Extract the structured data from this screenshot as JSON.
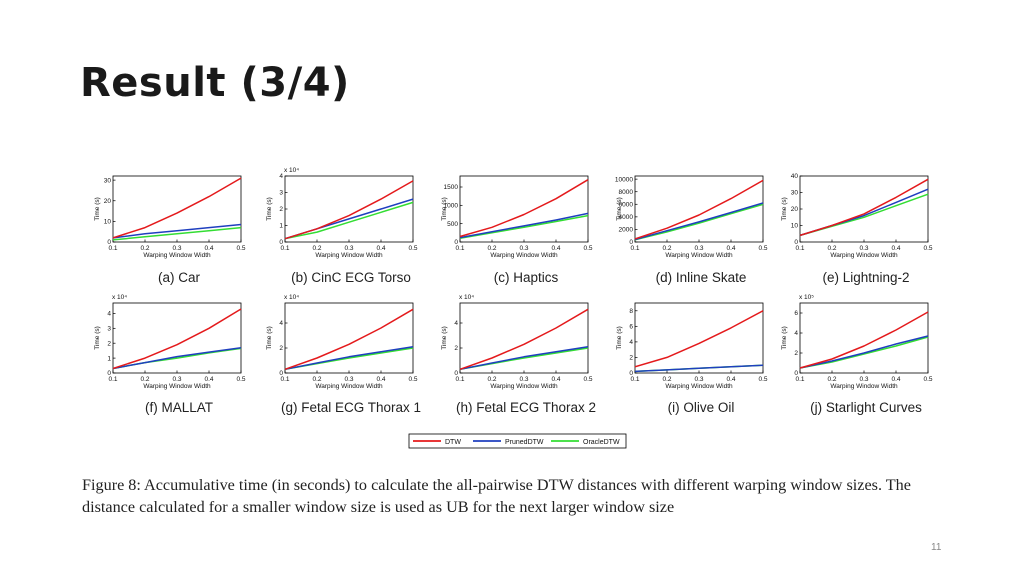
{
  "slide": {
    "title": "Result (3/4)",
    "page_number": "11"
  },
  "caption": "Figure 8: Accumulative time (in seconds) to calculate the all-pairwise DTW distances with different warping window sizes. The distance calculated for a smaller window size is used as UB for the next larger window size",
  "legend": [
    "DTW",
    "PrunedDTW",
    "OracleDTW"
  ],
  "colors": {
    "DTW": "#e41a1c",
    "PrunedDTW": "#1f3fbf",
    "OracleDTW": "#33dd33"
  },
  "chart_data": [
    {
      "type": "line",
      "caption": "(a) Car",
      "xlabel": "Warping Window Width",
      "ylabel": "Time (s)",
      "exponent": "",
      "x": [
        0.1,
        0.2,
        0.3,
        0.4,
        0.5
      ],
      "xticks": [
        "0.1",
        "0.2",
        "0.3",
        "0.4",
        "0.5"
      ],
      "ylim": [
        0,
        32
      ],
      "yticks": [
        0,
        10,
        20,
        30
      ],
      "ytick_labels": [
        "0",
        "10",
        "20",
        "30"
      ],
      "series": [
        {
          "name": "DTW",
          "values": [
            2,
            7,
            14,
            22,
            31
          ]
        },
        {
          "name": "PrunedDTW",
          "values": [
            2,
            4,
            5.5,
            7,
            8.5
          ]
        },
        {
          "name": "OracleDTW",
          "values": [
            1,
            2.5,
            4,
            5.5,
            7
          ]
        }
      ]
    },
    {
      "type": "line",
      "caption": "(b) CinC ECG Torso",
      "xlabel": "Warping Window Width",
      "ylabel": "Time (s)",
      "exponent": "x 10⁴",
      "x": [
        0.1,
        0.2,
        0.3,
        0.4,
        0.5
      ],
      "xticks": [
        "0.1",
        "0.2",
        "0.3",
        "0.4",
        "0.5"
      ],
      "ylim": [
        0,
        4
      ],
      "yticks": [
        0,
        1,
        2,
        3,
        4
      ],
      "ytick_labels": [
        "0",
        "1",
        "2",
        "3",
        "4"
      ],
      "series": [
        {
          "name": "DTW",
          "values": [
            0.2,
            0.8,
            1.6,
            2.6,
            3.7
          ]
        },
        {
          "name": "PrunedDTW",
          "values": [
            0.2,
            0.8,
            1.4,
            2.0,
            2.6
          ]
        },
        {
          "name": "OracleDTW",
          "values": [
            0.2,
            0.6,
            1.2,
            1.8,
            2.4
          ]
        }
      ]
    },
    {
      "type": "line",
      "caption": "(c) Haptics",
      "xlabel": "Warping Window Width",
      "ylabel": "Time (s)",
      "exponent": "",
      "x": [
        0.1,
        0.2,
        0.3,
        0.4,
        0.5
      ],
      "xticks": [
        "0.1",
        "0.2",
        "0.3",
        "0.4",
        "0.5"
      ],
      "ylim": [
        0,
        1800
      ],
      "yticks": [
        0,
        500,
        1000,
        1500
      ],
      "ytick_labels": [
        "0",
        "500",
        "1000",
        "1500"
      ],
      "series": [
        {
          "name": "DTW",
          "values": [
            150,
            400,
            750,
            1180,
            1700
          ]
        },
        {
          "name": "PrunedDTW",
          "values": [
            120,
            280,
            440,
            600,
            780
          ]
        },
        {
          "name": "OracleDTW",
          "values": [
            100,
            250,
            400,
            560,
            720
          ]
        }
      ]
    },
    {
      "type": "line",
      "caption": "(d) Inline Skate",
      "xlabel": "Warping Window Width",
      "ylabel": "Time (s)",
      "exponent": "",
      "x": [
        0.1,
        0.2,
        0.3,
        0.4,
        0.5
      ],
      "xticks": [
        "0.1",
        "0.2",
        "0.3",
        "0.4",
        "0.5"
      ],
      "ylim": [
        0,
        10500
      ],
      "yticks": [
        0,
        2000,
        4000,
        6000,
        8000,
        10000
      ],
      "ytick_labels": [
        "0",
        "2000",
        "4000",
        "6000",
        "8000",
        "10000"
      ],
      "series": [
        {
          "name": "DTW",
          "values": [
            500,
            2200,
            4300,
            6900,
            9800
          ]
        },
        {
          "name": "PrunedDTW",
          "values": [
            400,
            1800,
            3200,
            4700,
            6200
          ]
        },
        {
          "name": "OracleDTW",
          "values": [
            350,
            1600,
            3000,
            4500,
            6000
          ]
        }
      ]
    },
    {
      "type": "line",
      "caption": "(e) Lightning-2",
      "xlabel": "Warping Window Width",
      "ylabel": "Time (s)",
      "exponent": "",
      "x": [
        0.1,
        0.2,
        0.3,
        0.4,
        0.5
      ],
      "xticks": [
        "0.1",
        "0.2",
        "0.3",
        "0.4",
        "0.5"
      ],
      "ylim": [
        0,
        40
      ],
      "yticks": [
        0,
        10,
        20,
        30,
        40
      ],
      "ytick_labels": [
        "0",
        "10",
        "20",
        "30",
        "40"
      ],
      "series": [
        {
          "name": "DTW",
          "values": [
            4,
            10,
            17,
            27,
            38
          ]
        },
        {
          "name": "PrunedDTW",
          "values": [
            4,
            10,
            16,
            24,
            32
          ]
        },
        {
          "name": "OracleDTW",
          "values": [
            4,
            9.5,
            15,
            22,
            29
          ]
        }
      ]
    },
    {
      "type": "line",
      "caption": "(f) MALLAT",
      "xlabel": "Warping Window Width",
      "ylabel": "Time (s)",
      "exponent": "x 10⁴",
      "x": [
        0.1,
        0.2,
        0.3,
        0.4,
        0.5
      ],
      "xticks": [
        "0.1",
        "0.2",
        "0.3",
        "0.4",
        "0.5"
      ],
      "ylim": [
        0,
        4.7
      ],
      "yticks": [
        0,
        1,
        2,
        3,
        4
      ],
      "ytick_labels": [
        "0",
        "1",
        "2",
        "3",
        "4"
      ],
      "series": [
        {
          "name": "DTW",
          "values": [
            0.3,
            1.0,
            1.9,
            3.0,
            4.3
          ]
        },
        {
          "name": "PrunedDTW",
          "values": [
            0.3,
            0.7,
            1.1,
            1.4,
            1.7
          ]
        },
        {
          "name": "OracleDTW",
          "values": [
            0.3,
            0.7,
            1.0,
            1.35,
            1.65
          ]
        }
      ]
    },
    {
      "type": "line",
      "caption": "(g) Fetal ECG Thorax 1",
      "xlabel": "Warping Window Width",
      "ylabel": "Time (s)",
      "exponent": "x 10⁴",
      "x": [
        0.1,
        0.2,
        0.3,
        0.4,
        0.5
      ],
      "xticks": [
        "0.1",
        "0.2",
        "0.3",
        "0.4",
        "0.5"
      ],
      "ylim": [
        0,
        5.6
      ],
      "yticks": [
        0,
        2,
        4
      ],
      "ytick_labels": [
        "0",
        "2",
        "4"
      ],
      "series": [
        {
          "name": "DTW",
          "values": [
            0.3,
            1.2,
            2.3,
            3.6,
            5.1
          ]
        },
        {
          "name": "PrunedDTW",
          "values": [
            0.3,
            0.8,
            1.3,
            1.7,
            2.1
          ]
        },
        {
          "name": "OracleDTW",
          "values": [
            0.3,
            0.75,
            1.2,
            1.6,
            2.0
          ]
        }
      ]
    },
    {
      "type": "line",
      "caption": "(h) Fetal ECG Thorax 2",
      "xlabel": "Warping Window Width",
      "ylabel": "Time (s)",
      "exponent": "x 10⁴",
      "x": [
        0.1,
        0.2,
        0.3,
        0.4,
        0.5
      ],
      "xticks": [
        "0.1",
        "0.2",
        "0.3",
        "0.4",
        "0.5"
      ],
      "ylim": [
        0,
        5.6
      ],
      "yticks": [
        0,
        2,
        4
      ],
      "ytick_labels": [
        "0",
        "2",
        "4"
      ],
      "series": [
        {
          "name": "DTW",
          "values": [
            0.3,
            1.2,
            2.3,
            3.6,
            5.1
          ]
        },
        {
          "name": "PrunedDTW",
          "values": [
            0.3,
            0.8,
            1.3,
            1.7,
            2.1
          ]
        },
        {
          "name": "OracleDTW",
          "values": [
            0.3,
            0.75,
            1.2,
            1.6,
            2.0
          ]
        }
      ]
    },
    {
      "type": "line",
      "caption": "(i) Olive Oil",
      "xlabel": "Warping Window Width",
      "ylabel": "Time (s)",
      "exponent": "",
      "x": [
        0.1,
        0.2,
        0.3,
        0.4,
        0.5
      ],
      "xticks": [
        "0.1",
        "0.2",
        "0.3",
        "0.4",
        "0.5"
      ],
      "ylim": [
        0,
        9
      ],
      "yticks": [
        0,
        2,
        4,
        6,
        8
      ],
      "ytick_labels": [
        "0",
        "2",
        "4",
        "6",
        "8"
      ],
      "series": [
        {
          "name": "DTW",
          "values": [
            0.8,
            2.0,
            3.8,
            5.8,
            8.0
          ]
        },
        {
          "name": "PrunedDTW",
          "values": [
            0.2,
            0.4,
            0.6,
            0.8,
            1.0
          ]
        },
        {
          "name": "OracleDTW",
          "values": [
            0.2,
            0.4,
            0.6,
            0.8,
            1.0
          ]
        }
      ]
    },
    {
      "type": "line",
      "caption": "(j) Starlight Curves",
      "xlabel": "Warping Window Width",
      "ylabel": "Time (s)",
      "exponent": "x 10⁵",
      "x": [
        0.1,
        0.2,
        0.3,
        0.4,
        0.5
      ],
      "xticks": [
        "0.1",
        "0.2",
        "0.3",
        "0.4",
        "0.5"
      ],
      "ylim": [
        0,
        7
      ],
      "yticks": [
        0,
        2,
        4,
        6
      ],
      "ytick_labels": [
        "0",
        "2",
        "4",
        "6"
      ],
      "series": [
        {
          "name": "DTW",
          "values": [
            0.5,
            1.4,
            2.7,
            4.3,
            6.1
          ]
        },
        {
          "name": "PrunedDTW",
          "values": [
            0.5,
            1.2,
            2.0,
            2.9,
            3.7
          ]
        },
        {
          "name": "OracleDTW",
          "values": [
            0.5,
            1.1,
            1.9,
            2.7,
            3.6
          ]
        }
      ]
    }
  ]
}
